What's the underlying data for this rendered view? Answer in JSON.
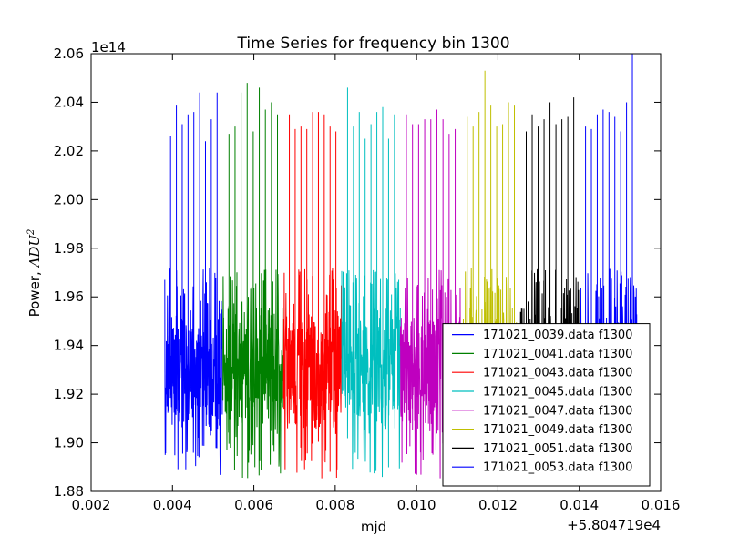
{
  "chart_data": {
    "type": "line",
    "title": "Time Series for frequency bin 1300",
    "xlabel": "mjd",
    "ylabel_text": "Power, ",
    "ylabel_math": "ADU",
    "ylabel_power": "2",
    "x_offset_label": "+5.804719e4",
    "y_scale_label": "1e14",
    "xlim": [
      0.002,
      0.016
    ],
    "ylim": [
      1.88,
      2.06
    ],
    "x_ticks": [
      0.002,
      0.004,
      0.006,
      0.008,
      0.01,
      0.012,
      0.014,
      0.016
    ],
    "x_tick_labels": [
      "0.002",
      "0.004",
      "0.006",
      "0.008",
      "0.010",
      "0.012",
      "0.014",
      "0.016"
    ],
    "y_ticks": [
      1.88,
      1.9,
      1.92,
      1.94,
      1.96,
      1.98,
      2.0,
      2.02,
      2.04,
      2.06
    ],
    "y_tick_labels": [
      "1.88",
      "1.90",
      "1.92",
      "1.94",
      "1.96",
      "1.98",
      "2.00",
      "2.02",
      "2.04",
      "2.06"
    ],
    "grid": false,
    "legend_position": "lower-right",
    "series": [
      {
        "name": "171021_0039.data f1300",
        "color": "#0000ff",
        "x_range": [
          0.00381,
          0.00524
        ],
        "base_range": [
          1.9,
          1.96
        ],
        "peaks": [
          1.98,
          2.026,
          2.039,
          2.031,
          2.035,
          2.036,
          2.044,
          2.024,
          2.033,
          2.044
        ]
      },
      {
        "name": "171021_0041.data f1300",
        "color": "#008000",
        "x_range": [
          0.00524,
          0.00673
        ],
        "base_range": [
          1.9,
          1.96
        ],
        "peaks": [
          2.018,
          2.027,
          2.03,
          2.044,
          2.048,
          2.028,
          2.046,
          2.037,
          2.04,
          2.035
        ]
      },
      {
        "name": "171021_0043.data f1300",
        "color": "#ff0000",
        "x_range": [
          0.00673,
          0.00816
        ],
        "base_range": [
          1.9,
          1.96
        ],
        "peaks": [
          2.04,
          2.035,
          2.029,
          2.03,
          2.029,
          2.036,
          2.036,
          2.035,
          2.03,
          2.028
        ]
      },
      {
        "name": "171021_0045.data f1300",
        "color": "#00bfbf",
        "x_range": [
          0.00816,
          0.0096
        ],
        "base_range": [
          1.9,
          1.96
        ],
        "peaks": [
          2.018,
          2.046,
          2.03,
          2.036,
          2.025,
          2.031,
          2.036,
          2.038,
          2.025,
          2.035
        ]
      },
      {
        "name": "171021_0047.data f1300",
        "color": "#bf00bf",
        "x_range": [
          0.0096,
          0.0111
        ],
        "base_range": [
          1.9,
          1.96
        ],
        "peaks": [
          2.04,
          2.035,
          2.031,
          2.031,
          2.033,
          2.033,
          2.037,
          2.033,
          2.027,
          2.029
        ]
      },
      {
        "name": "171021_0049.data f1300",
        "color": "#bfbf00",
        "x_range": [
          0.0111,
          0.01255
        ],
        "base_range": [
          1.9,
          1.96
        ],
        "peaks": [
          2.03,
          2.034,
          2.03,
          2.036,
          2.053,
          2.039,
          2.03,
          2.031,
          2.04,
          2.039
        ]
      },
      {
        "name": "171021_0051.data f1300",
        "color": "#000000",
        "x_range": [
          0.01255,
          0.01401
        ],
        "base_range": [
          1.9,
          1.96
        ],
        "peaks": [
          2.032,
          2.028,
          2.035,
          2.03,
          2.033,
          2.04,
          2.031,
          2.033,
          2.034,
          2.042
        ]
      },
      {
        "name": "171021_0053.data f1300",
        "color": "#0000ff",
        "x_range": [
          0.01401,
          0.01545
        ],
        "base_range": [
          1.9,
          1.96
        ],
        "peaks": [
          2.028,
          2.03,
          2.029,
          2.035,
          2.037,
          2.036,
          2.034,
          2.028,
          2.04,
          2.06
        ]
      }
    ]
  }
}
